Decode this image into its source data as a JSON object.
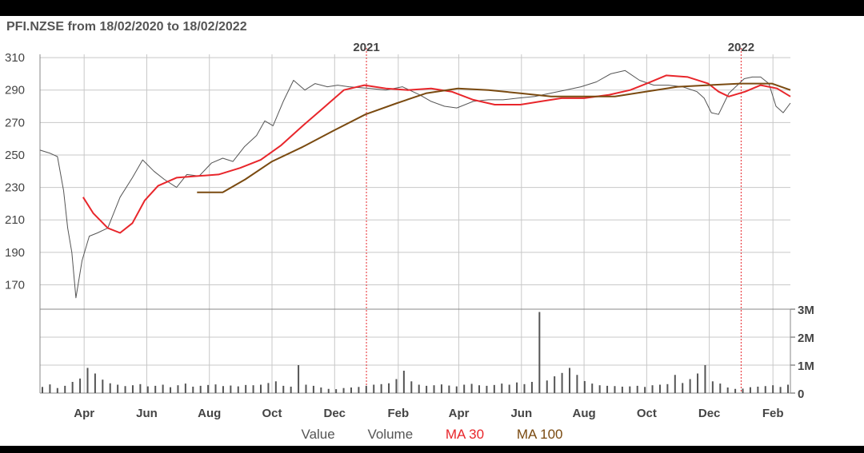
{
  "title": "PFI.NZSE from 18/02/2020 to 18/02/2022",
  "colors": {
    "value": "#555555",
    "volume": "#555555",
    "ma30": "#e8262b",
    "ma100": "#7a4a10",
    "grid": "#c8c8c8",
    "year_line": "#e8262b"
  },
  "legend": {
    "value": "Value",
    "volume": "Volume",
    "ma30": "MA 30",
    "ma100": "MA 100"
  },
  "chart_data": {
    "type": "line",
    "y_ticks": [
      "310",
      "290",
      "270",
      "250",
      "230",
      "210",
      "190",
      "170"
    ],
    "ylim": [
      155,
      312
    ],
    "x_month_labels": [
      "Apr",
      "Jun",
      "Aug",
      "Oct",
      "Dec",
      "Feb",
      "Apr",
      "Jun",
      "Aug",
      "Oct",
      "Dec",
      "Feb"
    ],
    "year_markers": [
      {
        "label": "2021",
        "date": "2021-01-01"
      },
      {
        "label": "2022",
        "date": "2022-01-01"
      }
    ],
    "volume_ticks": [
      "3M",
      "2M",
      "1M",
      "0"
    ],
    "volume_ylim": [
      0,
      3000000
    ],
    "series": [
      {
        "name": "Value",
        "x": [
          "2020-02-18",
          "2020-02-28",
          "2020-03-06",
          "2020-03-12",
          "2020-03-16",
          "2020-03-20",
          "2020-03-24",
          "2020-03-30",
          "2020-04-06",
          "2020-04-14",
          "2020-04-24",
          "2020-05-06",
          "2020-05-18",
          "2020-05-28",
          "2020-06-08",
          "2020-06-18",
          "2020-06-30",
          "2020-07-10",
          "2020-07-22",
          "2020-08-03",
          "2020-08-14",
          "2020-08-24",
          "2020-09-04",
          "2020-09-16",
          "2020-09-24",
          "2020-10-02",
          "2020-10-12",
          "2020-10-22",
          "2020-11-02",
          "2020-11-12",
          "2020-11-24",
          "2020-12-04",
          "2020-12-15",
          "2021-01-05",
          "2021-01-20",
          "2021-02-05",
          "2021-02-22",
          "2021-03-05",
          "2021-03-18",
          "2021-03-30",
          "2021-04-15",
          "2021-04-30",
          "2021-05-14",
          "2021-05-28",
          "2021-06-14",
          "2021-06-29",
          "2021-07-14",
          "2021-07-29",
          "2021-08-13",
          "2021-08-27",
          "2021-09-10",
          "2021-09-24",
          "2021-10-08",
          "2021-10-22",
          "2021-11-05",
          "2021-11-19",
          "2021-11-26",
          "2021-12-03",
          "2021-12-10",
          "2021-12-20",
          "2022-01-04",
          "2022-01-12",
          "2022-01-20",
          "2022-01-28",
          "2022-02-04",
          "2022-02-11",
          "2022-02-18"
        ],
        "values": [
          253,
          251,
          249,
          228,
          205,
          190,
          162,
          185,
          200,
          202,
          205,
          224,
          236,
          247,
          240,
          235,
          230,
          238,
          237,
          245,
          248,
          246,
          255,
          262,
          271,
          268,
          283,
          296,
          290,
          294,
          292,
          293,
          292,
          291,
          290,
          292,
          287,
          283,
          280,
          279,
          283,
          284,
          284,
          285,
          286,
          288,
          290,
          292,
          295,
          300,
          302,
          296,
          293,
          293,
          292,
          289,
          285,
          276,
          275,
          288,
          297,
          298,
          298,
          294,
          280,
          276,
          282
        ]
      },
      {
        "name": "MA 30",
        "x": [
          "2020-03-31",
          "2020-04-10",
          "2020-04-24",
          "2020-05-06",
          "2020-05-18",
          "2020-05-30",
          "2020-06-12",
          "2020-06-30",
          "2020-07-20",
          "2020-08-10",
          "2020-08-31",
          "2020-09-20",
          "2020-10-10",
          "2020-10-31",
          "2020-11-20",
          "2020-12-10",
          "2020-12-30",
          "2021-01-20",
          "2021-02-10",
          "2021-03-05",
          "2021-03-25",
          "2021-04-15",
          "2021-05-06",
          "2021-05-31",
          "2021-06-20",
          "2021-07-10",
          "2021-08-01",
          "2021-08-25",
          "2021-09-15",
          "2021-10-01",
          "2021-10-20",
          "2021-11-10",
          "2021-11-30",
          "2021-12-10",
          "2021-12-20",
          "2022-01-05",
          "2022-01-20",
          "2022-02-05",
          "2022-02-18"
        ],
        "values": [
          224,
          214,
          205,
          202,
          208,
          222,
          231,
          236,
          237,
          238,
          242,
          247,
          256,
          268,
          279,
          290,
          293,
          291,
          290,
          291,
          289,
          284,
          281,
          281,
          283,
          285,
          285,
          287,
          290,
          294,
          299,
          298,
          294,
          289,
          286,
          289,
          293,
          291,
          286
        ]
      },
      {
        "name": "MA 100",
        "x": [
          "2020-07-20",
          "2020-08-14",
          "2020-09-05",
          "2020-10-01",
          "2020-10-31",
          "2020-11-30",
          "2020-12-31",
          "2021-01-31",
          "2021-02-28",
          "2021-03-31",
          "2021-04-30",
          "2021-05-31",
          "2021-06-30",
          "2021-07-31",
          "2021-08-31",
          "2021-09-30",
          "2021-10-31",
          "2021-11-30",
          "2021-12-31",
          "2022-01-31",
          "2022-02-18"
        ],
        "values": [
          227,
          227,
          235,
          246,
          255,
          265,
          275,
          282,
          288,
          291,
          290,
          288,
          286,
          286,
          286,
          289,
          292,
          293,
          294,
          294,
          290
        ]
      }
    ],
    "volume_bars": [
      220000,
      310000,
      180000,
      260000,
      400000,
      520000,
      900000,
      700000,
      480000,
      350000,
      300000,
      250000,
      280000,
      320000,
      240000,
      260000,
      300000,
      210000,
      280000,
      340000,
      230000,
      260000,
      290000,
      310000,
      250000,
      270000,
      240000,
      290000,
      280000,
      300000,
      360000,
      420000,
      260000,
      230000,
      1000000,
      300000,
      260000,
      200000,
      150000,
      140000,
      180000,
      200000,
      220000,
      260000,
      300000,
      320000,
      350000,
      500000,
      800000,
      420000,
      300000,
      260000,
      280000,
      310000,
      270000,
      240000,
      300000,
      330000,
      280000,
      260000,
      290000,
      340000,
      300000,
      380000,
      320000,
      400000,
      2900000,
      450000,
      600000,
      720000,
      900000,
      650000,
      430000,
      340000,
      280000,
      260000,
      250000,
      230000,
      240000,
      260000,
      220000,
      280000,
      300000,
      320000,
      650000,
      360000,
      500000,
      700000,
      1000000,
      420000,
      340000,
      200000,
      150000,
      160000,
      210000,
      230000,
      250000,
      280000,
      220000,
      300000
    ]
  }
}
